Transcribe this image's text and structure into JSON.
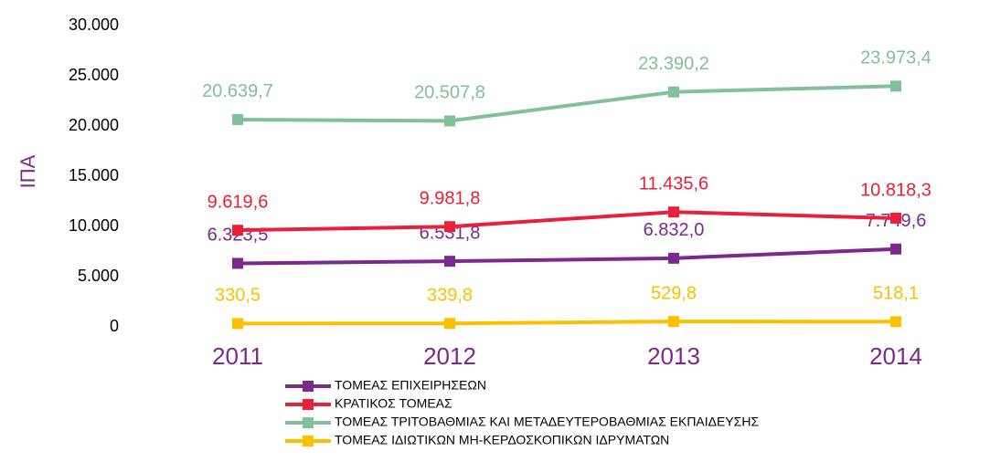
{
  "chart_data": {
    "type": "line",
    "y_label": "ΙΠΑ",
    "categories": [
      "2011",
      "2012",
      "2013",
      "2014"
    ],
    "series": [
      {
        "name": "ΤΟΜΕΑΣ ΕΠΙΧΕΙΡΗΣΕΩΝ",
        "color": "#7b2a8b",
        "values": [
          6323.5,
          6531.8,
          6832.0,
          7749.6
        ],
        "value_labels": [
          "6.323,5",
          "6.531,8",
          "6.832,0",
          "7.749,6"
        ]
      },
      {
        "name": "ΚΡΑΤΙΚΟΣ ΤΟΜΕΑΣ",
        "color": "#e8203a",
        "values": [
          9619.6,
          9981.8,
          11435.6,
          10818.3
        ],
        "value_labels": [
          "9.619,6",
          "9.981,8",
          "11.435,6",
          "10.818,3"
        ]
      },
      {
        "name": "ΤΟΜΕΑΣ ΤΡΙΤΟΒΑΘΜΙΑΣ ΚΑΙ ΜΕΤΑΔΕΥΤΕΡΟΒΑΘΜΙΑΣ ΕΚΠΑΙΔΕΥΣΗΣ",
        "color": "#82c09a",
        "values": [
          20639.7,
          20507.8,
          23390.2,
          23973.4
        ],
        "value_labels": [
          "20.639,7",
          "20.507,8",
          "23.390,2",
          "23.973,4"
        ]
      },
      {
        "name": "ΤΟΜΕΑΣ ΙΔΙΩΤΙΚΩΝ ΜΗ-ΚΕΡΔΟΣΚΟΠΙΚΩΝ ΙΔΡΥΜΑΤΩΝ",
        "color": "#fcc000",
        "values": [
          330.5,
          339.8,
          529.8,
          518.1
        ],
        "value_labels": [
          "330,5",
          "339,8",
          "529,8",
          "518,1"
        ]
      }
    ],
    "ylim": [
      0,
      30000
    ],
    "yticks": [
      0,
      {
        "value": 5000,
        "label": "5.000"
      },
      {
        "value": 10000,
        "label": "10.000"
      },
      {
        "value": 15000,
        "label": "15.000"
      },
      {
        "value": 20000,
        "label": "20.000"
      },
      {
        "value": 25000,
        "label": "25.000"
      },
      {
        "value": 30000,
        "label": "30.000"
      }
    ],
    "legend": "bottom"
  }
}
